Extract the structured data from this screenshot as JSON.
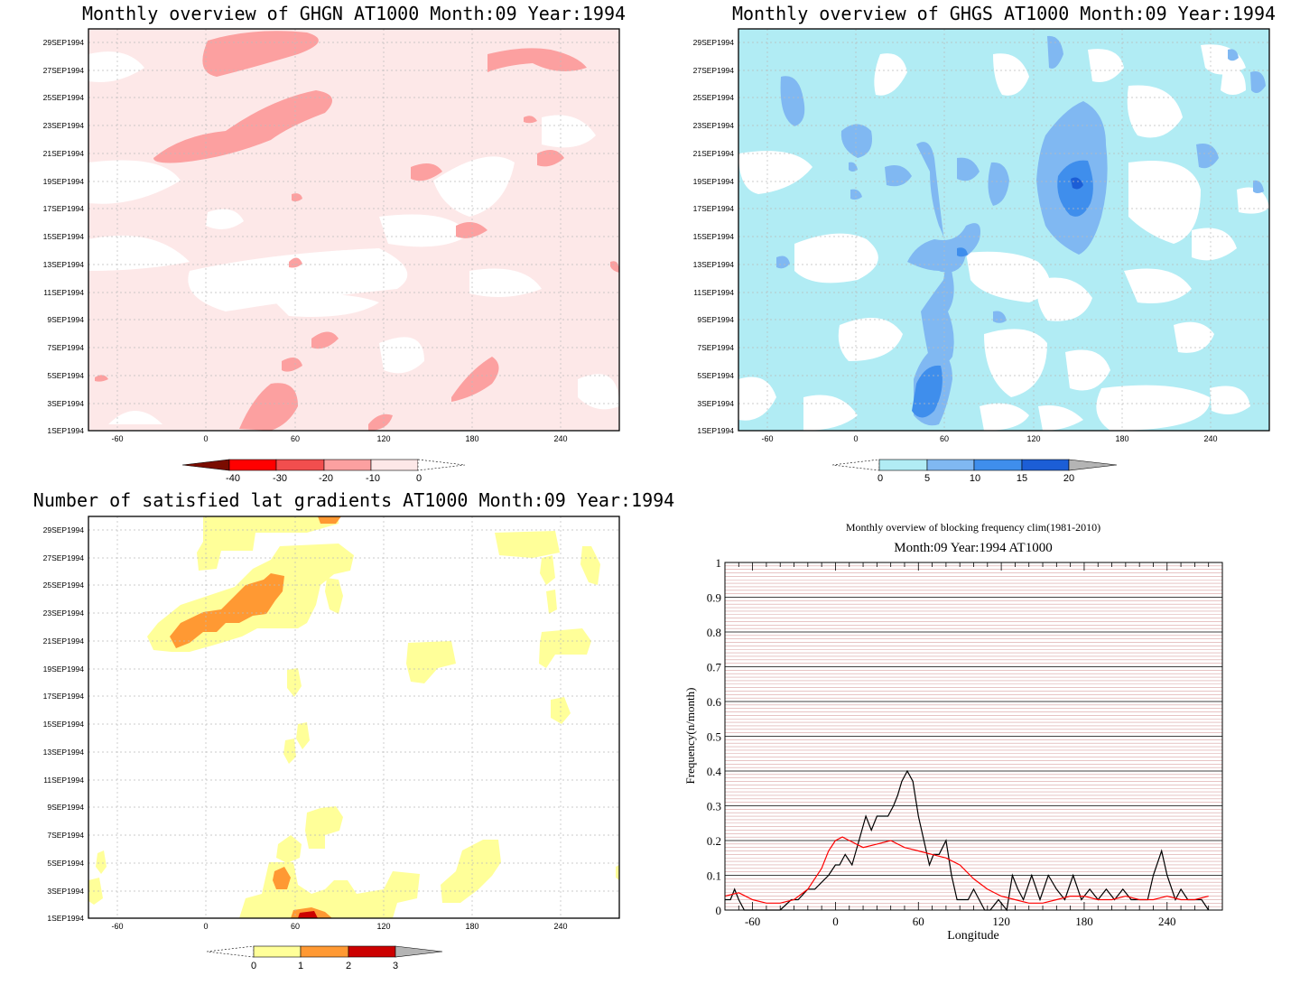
{
  "panels": {
    "ghgn": {
      "title": "Monthly overview of GHGN AT1000 Month:09 Year:1994",
      "colorbar": {
        "labels": [
          "-40",
          "-30",
          "-20",
          "-10",
          "0"
        ],
        "colors": [
          "#7a0c00",
          "#ff0000",
          "#f24e4e",
          "#fca0a0",
          "#fde8e8"
        ]
      }
    },
    "ghgs": {
      "title": "Monthly overview of GHGS AT1000 Month:09 Year:1994",
      "colorbar": {
        "labels": [
          "0",
          "5",
          "10",
          "15",
          "20"
        ],
        "colors": [
          "#b1ecf4",
          "#80b8f2",
          "#3f8eec",
          "#1c5ed6",
          "#b4b4b4"
        ]
      }
    },
    "lat": {
      "title": "Number of satisfied lat gradients AT1000 Month:09 Year:1994",
      "colorbar": {
        "labels": [
          "0",
          "1",
          "2",
          "3"
        ],
        "colors": [
          "#ffff99",
          "#ff9933",
          "#cc0000",
          "#b4b4b4"
        ]
      }
    },
    "blocking": {
      "title": "Monthly overview of blocking frequency clim(1981-2010)",
      "subtitle": "Month:09 Year:1994  AT1000"
    }
  },
  "axes": {
    "x_ticks": [
      "-60",
      "0",
      "60",
      "120",
      "180",
      "240"
    ],
    "y_ticks": [
      "1SEP1994",
      "3SEP1994",
      "5SEP1994",
      "7SEP1994",
      "9SEP1994",
      "11SEP1994",
      "13SEP1994",
      "15SEP1994",
      "17SEP1994",
      "19SEP1994",
      "21SEP1994",
      "23SEP1994",
      "25SEP1994",
      "27SEP1994",
      "29SEP1994"
    ]
  },
  "chart_data": [
    {
      "type": "heatmap",
      "title": "Monthly overview of GHGN AT1000 Month:09 Year:1994",
      "x_ticks": [
        -60,
        0,
        60,
        120,
        180,
        240
      ],
      "xlim": [
        -80,
        280
      ],
      "y_ticks": [
        "1SEP1994",
        "3SEP1994",
        "5SEP1994",
        "7SEP1994",
        "9SEP1994",
        "11SEP1994",
        "13SEP1994",
        "15SEP1994",
        "17SEP1994",
        "19SEP1994",
        "21SEP1994",
        "23SEP1994",
        "25SEP1994",
        "27SEP1994",
        "29SEP1994"
      ],
      "levels": [
        -40,
        -30,
        -20,
        -10,
        0
      ],
      "grid": true
    },
    {
      "type": "heatmap",
      "title": "Monthly overview of GHGS AT1000 Month:09 Year:1994",
      "x_ticks": [
        -60,
        0,
        60,
        120,
        180,
        240
      ],
      "xlim": [
        -80,
        280
      ],
      "levels": [
        0,
        5,
        10,
        15,
        20
      ],
      "grid": true
    },
    {
      "type": "heatmap",
      "title": "Number of satisfied lat gradients AT1000 Month:09 Year:1994",
      "x_ticks": [
        -60,
        0,
        60,
        120,
        180,
        240
      ],
      "xlim": [
        -80,
        280
      ],
      "levels": [
        0,
        1,
        2,
        3
      ],
      "grid": true
    },
    {
      "type": "line",
      "title": "Monthly overview of blocking frequency clim(1981-2010)",
      "subtitle": "Month:09 Year:1994  AT1000",
      "xlabel": "Longitude",
      "ylabel": "Frequency(n/month)",
      "xlim": [
        -80,
        280
      ],
      "ylim": [
        0,
        1
      ],
      "x_ticks": [
        -60,
        0,
        60,
        120,
        180,
        240
      ],
      "y_ticks": [
        0,
        0.1,
        0.2,
        0.3,
        0.4,
        0.5,
        0.6,
        0.7,
        0.8,
        0.9,
        1
      ],
      "grid": true,
      "series": [
        {
          "color": "#000000",
          "x": [
            -80,
            -76,
            -73,
            -70,
            -66,
            -60,
            -40,
            -32,
            -27,
            -20,
            -15,
            -5,
            0,
            3,
            7,
            12,
            17,
            22,
            26,
            30,
            34,
            38,
            42,
            45,
            48,
            52,
            56,
            60,
            64,
            68,
            71,
            75,
            80,
            84,
            88,
            92,
            96,
            100,
            104,
            108,
            112,
            118,
            124,
            128,
            132,
            136,
            142,
            148,
            154,
            160,
            166,
            172,
            178,
            184,
            190,
            196,
            202,
            208,
            214,
            220,
            226,
            230,
            236,
            240,
            246,
            250,
            255,
            260,
            265,
            270
          ],
          "y": [
            0.03,
            0.03,
            0.06,
            0.03,
            0,
            0,
            0,
            0.03,
            0.03,
            0.06,
            0.06,
            0.1,
            0.13,
            0.13,
            0.16,
            0.13,
            0.2,
            0.27,
            0.23,
            0.27,
            0.27,
            0.27,
            0.3,
            0.33,
            0.37,
            0.4,
            0.37,
            0.27,
            0.2,
            0.13,
            0.16,
            0.16,
            0.2,
            0.1,
            0.03,
            0.03,
            0.03,
            0.06,
            0.03,
            0,
            0,
            0.03,
            0,
            0.1,
            0.06,
            0.03,
            0.1,
            0.03,
            0.1,
            0.06,
            0.03,
            0.1,
            0.03,
            0.06,
            0.03,
            0.06,
            0.03,
            0.06,
            0.03,
            0.03,
            0.03,
            0.1,
            0.17,
            0.1,
            0.03,
            0.06,
            0.03,
            0.03,
            0.03,
            0
          ]
        },
        {
          "color": "#ff0000",
          "x": [
            -80,
            -70,
            -60,
            -50,
            -40,
            -30,
            -20,
            -10,
            -5,
            0,
            5,
            10,
            20,
            30,
            40,
            50,
            60,
            70,
            80,
            90,
            100,
            110,
            120,
            130,
            140,
            150,
            160,
            170,
            180,
            190,
            200,
            210,
            220,
            230,
            240,
            250,
            260,
            270
          ],
          "y": [
            0.04,
            0.05,
            0.03,
            0.02,
            0.02,
            0.03,
            0.06,
            0.12,
            0.17,
            0.2,
            0.21,
            0.2,
            0.18,
            0.19,
            0.2,
            0.18,
            0.17,
            0.16,
            0.15,
            0.13,
            0.09,
            0.06,
            0.04,
            0.03,
            0.02,
            0.02,
            0.03,
            0.04,
            0.04,
            0.03,
            0.03,
            0.04,
            0.03,
            0.03,
            0.04,
            0.03,
            0.03,
            0.04
          ]
        }
      ]
    }
  ]
}
